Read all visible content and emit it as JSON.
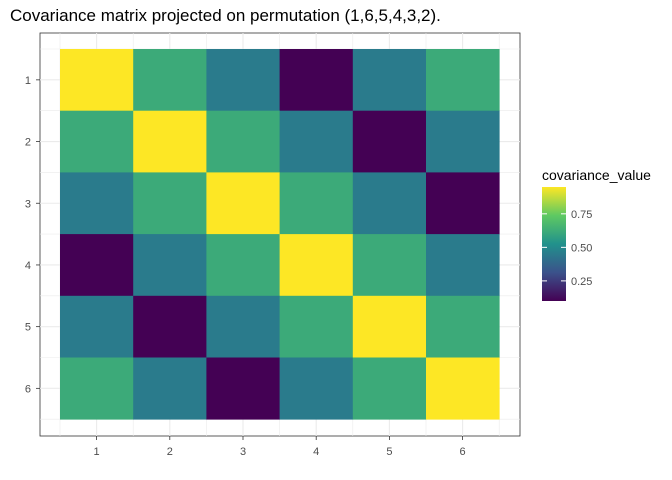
{
  "chart_data": {
    "type": "heatmap",
    "title": "Covariance matrix projected on permutation (1,6,5,4,3,2).",
    "x_categories": [
      "1",
      "2",
      "3",
      "4",
      "5",
      "6"
    ],
    "y_categories": [
      "1",
      "2",
      "3",
      "4",
      "5",
      "6"
    ],
    "values": [
      [
        0.95,
        0.62,
        0.45,
        0.1,
        0.45,
        0.62
      ],
      [
        0.62,
        0.95,
        0.62,
        0.45,
        0.1,
        0.45
      ],
      [
        0.45,
        0.62,
        0.95,
        0.62,
        0.45,
        0.1
      ],
      [
        0.1,
        0.45,
        0.62,
        0.95,
        0.62,
        0.45
      ],
      [
        0.45,
        0.1,
        0.45,
        0.62,
        0.95,
        0.62
      ],
      [
        0.62,
        0.45,
        0.1,
        0.45,
        0.62,
        0.95
      ]
    ],
    "color_range": [
      0.1,
      0.95
    ],
    "colormap": "viridis",
    "legend": {
      "title": "covariance_value",
      "ticks": [
        0.25,
        0.5,
        0.75
      ],
      "tick_labels": [
        "0.25",
        "0.50",
        "0.75"
      ],
      "placement": "right"
    },
    "grid": true
  }
}
